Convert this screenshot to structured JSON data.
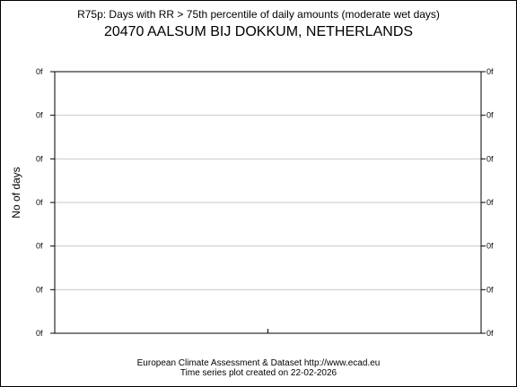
{
  "title": "R75p: Days with RR > 75th percentile of daily amounts (moderate wet days)",
  "subtitle": "20470 AALSUM BIJ DOKKUM, NETHERLANDS",
  "footer": {
    "line1": "European Climate Assessment & Dataset  http://www.ecad.eu",
    "line2": "Time series plot created on 22-02-2026"
  },
  "chart_data": {
    "type": "line",
    "title": "R75p: Days with RR > 75th percentile of daily amounts (moderate wet days)",
    "subtitle": "20470 AALSUM BIJ DOKKUM, NETHERLANDS",
    "xlabel": "",
    "ylabel": "No of days",
    "yticks_left": [
      "0f",
      "0f",
      "0f",
      "0f",
      "0f",
      "0f",
      "0f"
    ],
    "yticks_right": [
      "0f",
      "0f",
      "0f",
      "0f",
      "0f",
      "0f",
      "0f"
    ],
    "grid": true,
    "series": []
  },
  "colors": {
    "axis": "#000000",
    "grid": "#c8c8c8",
    "background": "#ffffff"
  }
}
